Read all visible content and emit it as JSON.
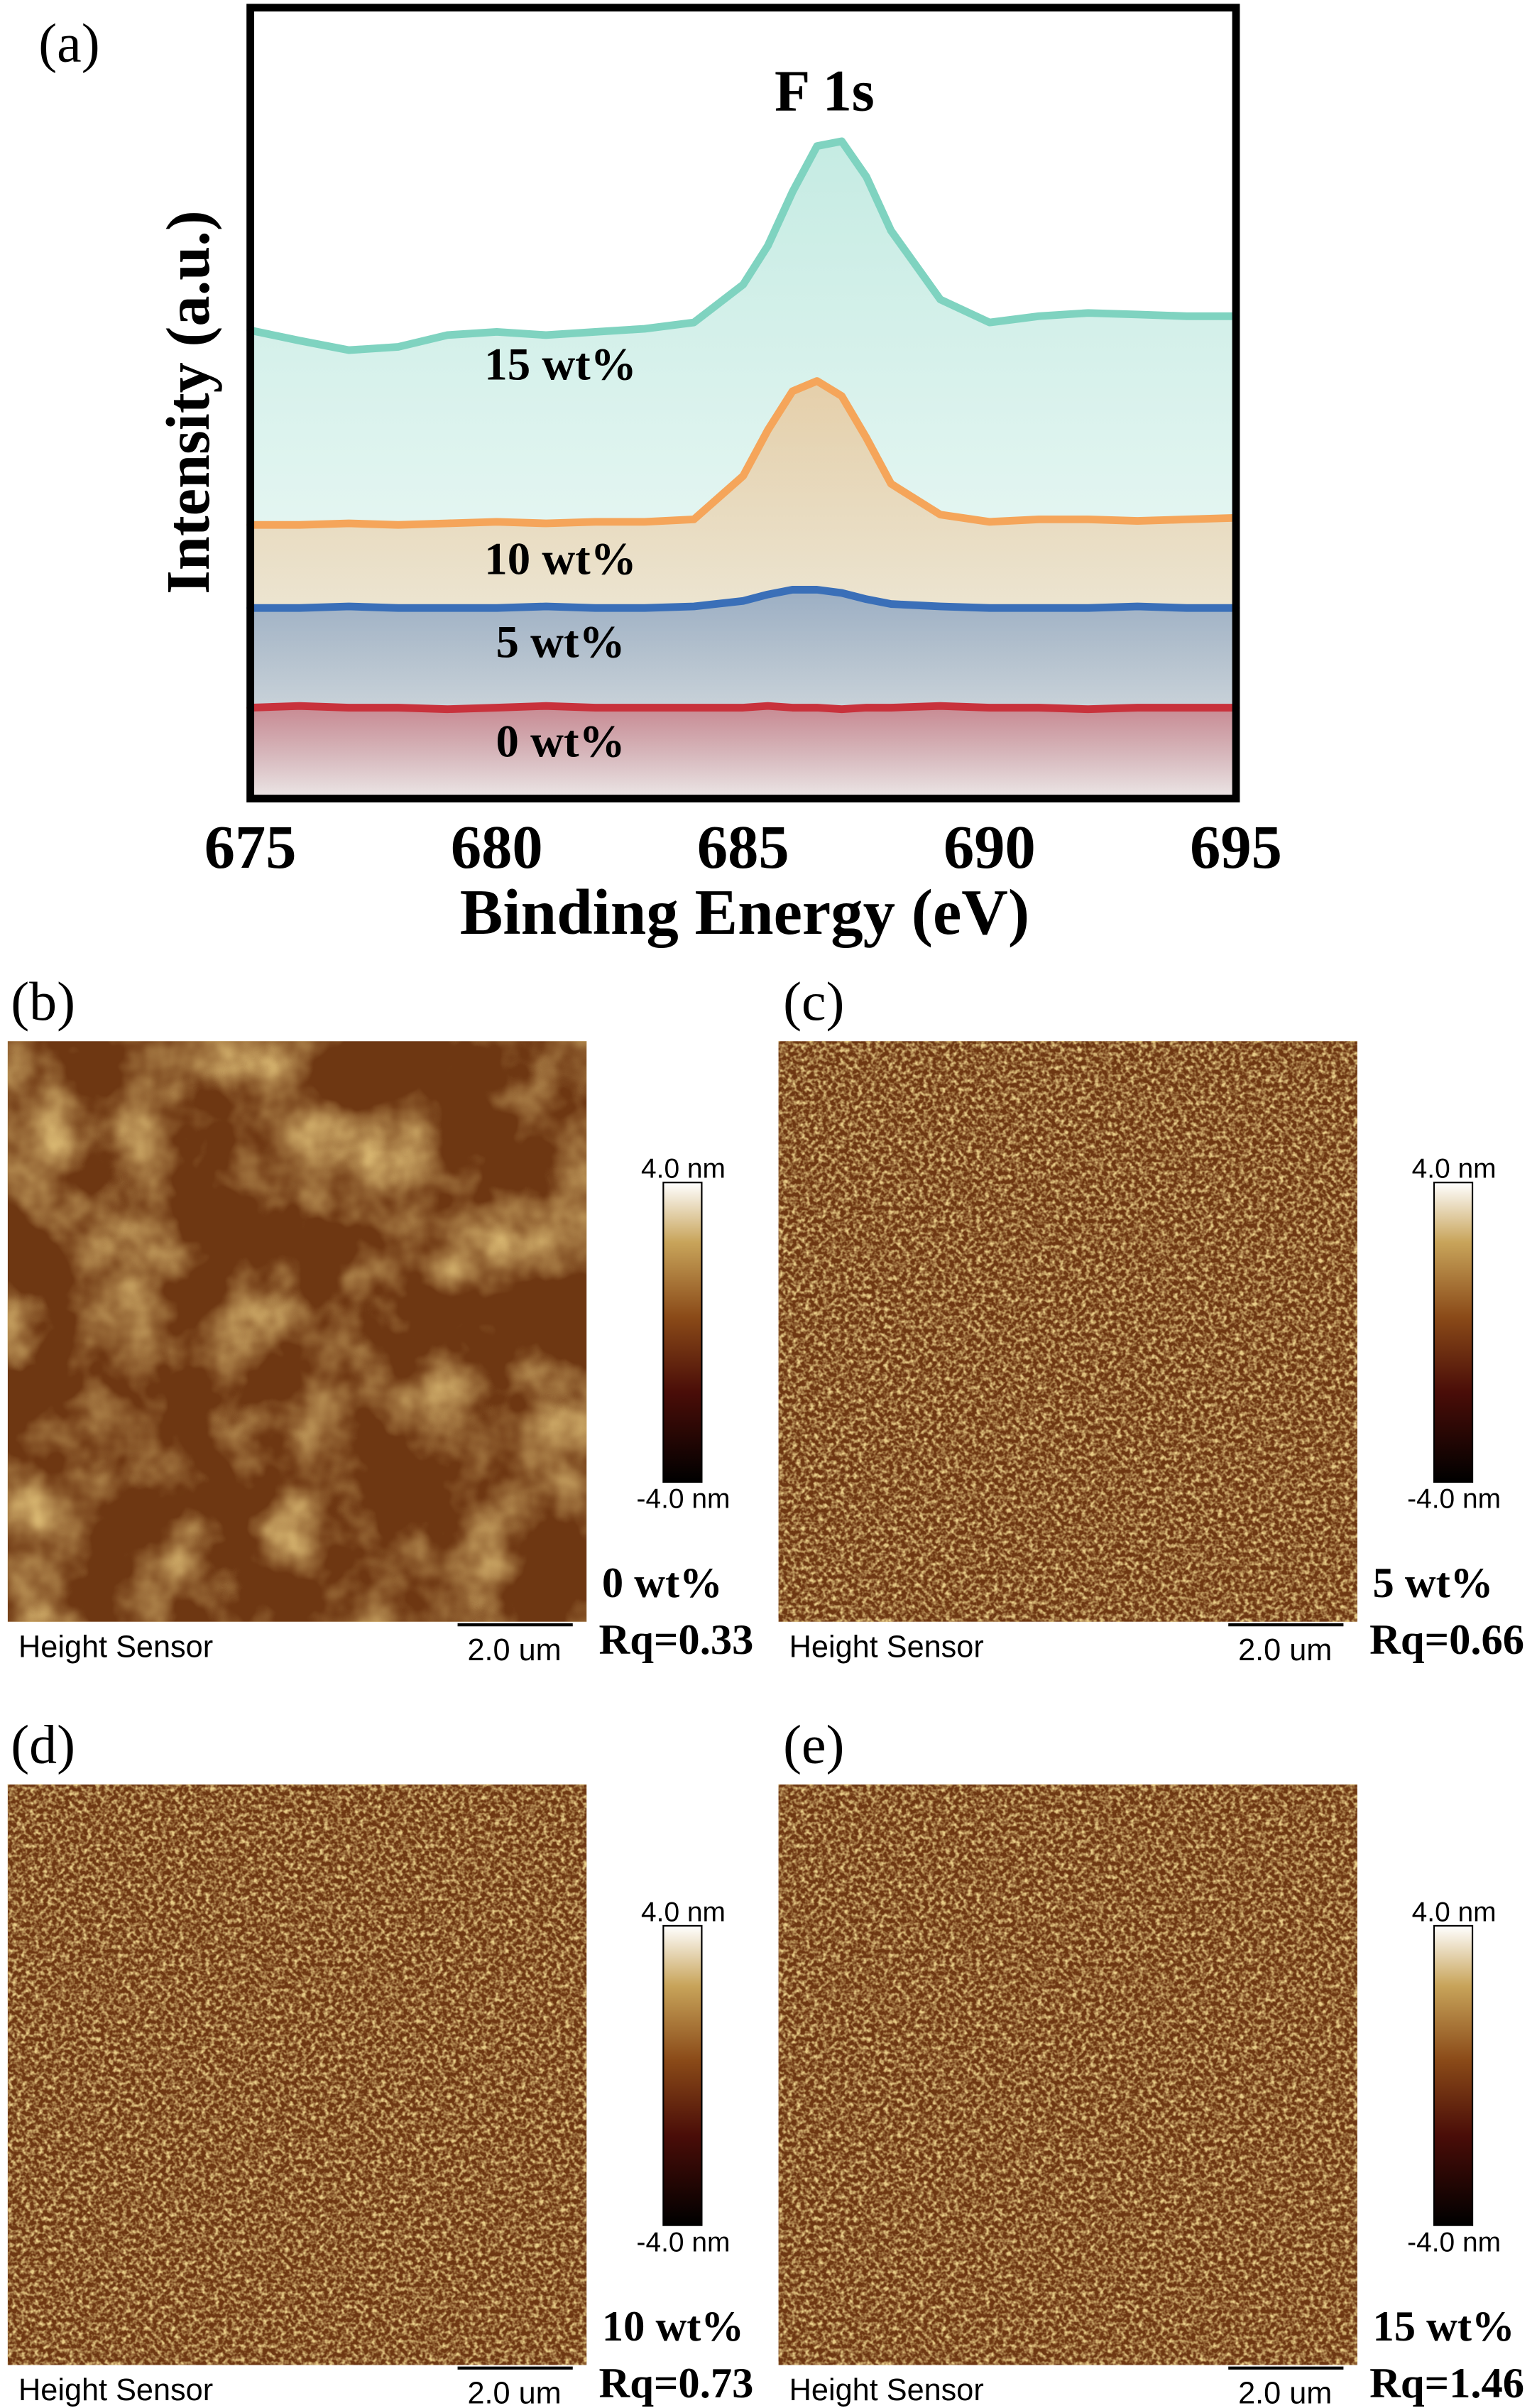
{
  "chart_data": {
    "type": "line",
    "panel_label": "(a)",
    "title": "F 1s",
    "x_label": "Binding Energy (eV)",
    "y_label": "Intensity (a.u.)",
    "x": [
      675,
      676,
      677,
      678,
      679,
      680,
      681,
      682,
      683,
      684,
      685,
      685.5,
      686,
      686.5,
      687,
      687.5,
      688,
      689,
      690,
      691,
      692,
      693,
      694,
      695
    ],
    "xlim": [
      675,
      695
    ],
    "xticks": [
      675,
      680,
      685,
      690,
      695
    ],
    "ylim": [
      0,
      10
    ],
    "grid": false,
    "series": [
      {
        "name": "15 wt%",
        "color": "#7fd3c0",
        "values": [
          5.92,
          5.79,
          5.67,
          5.71,
          5.86,
          5.9,
          5.86,
          5.9,
          5.94,
          6.02,
          6.5,
          6.99,
          7.67,
          8.25,
          8.31,
          7.86,
          7.18,
          6.31,
          6.02,
          6.1,
          6.14,
          6.12,
          6.1,
          6.1
        ]
      },
      {
        "name": "10 wt%",
        "color": "#f5a55a",
        "values": [
          3.46,
          3.46,
          3.48,
          3.46,
          3.48,
          3.5,
          3.48,
          3.5,
          3.5,
          3.53,
          4.08,
          4.66,
          5.15,
          5.28,
          5.09,
          4.56,
          3.98,
          3.59,
          3.5,
          3.53,
          3.53,
          3.51,
          3.53,
          3.55
        ]
      },
      {
        "name": "5 wt%",
        "color": "#3a6fb8",
        "values": [
          2.41,
          2.41,
          2.43,
          2.41,
          2.41,
          2.41,
          2.43,
          2.41,
          2.41,
          2.43,
          2.5,
          2.58,
          2.64,
          2.64,
          2.6,
          2.52,
          2.46,
          2.43,
          2.41,
          2.41,
          2.41,
          2.43,
          2.41,
          2.41
        ]
      },
      {
        "name": "0 wt%",
        "color": "#c8323c",
        "values": [
          1.15,
          1.17,
          1.15,
          1.15,
          1.13,
          1.15,
          1.17,
          1.15,
          1.15,
          1.15,
          1.15,
          1.17,
          1.15,
          1.15,
          1.13,
          1.15,
          1.15,
          1.17,
          1.15,
          1.15,
          1.13,
          1.15,
          1.15,
          1.15
        ]
      }
    ]
  },
  "afm_panels": [
    {
      "label": "(b)",
      "sample": "0 wt%",
      "rq": "Rq=0.33",
      "colorbar_max": "4.0 nm",
      "colorbar_min": "-4.0 nm",
      "sensor": "Height Sensor",
      "scale_bar": "2.0 um"
    },
    {
      "label": "(c)",
      "sample": "5 wt%",
      "rq": "Rq=0.66",
      "colorbar_max": "4.0 nm",
      "colorbar_min": "-4.0 nm",
      "sensor": "Height Sensor",
      "scale_bar": "2.0 um"
    },
    {
      "label": "(d)",
      "sample": "10 wt%",
      "rq": "Rq=0.73",
      "colorbar_max": "4.0 nm",
      "colorbar_min": "-4.0 nm",
      "sensor": "Height Sensor",
      "scale_bar": "2.0 um"
    },
    {
      "label": "(e)",
      "sample": "15 wt%",
      "rq": "Rq=1.46",
      "colorbar_max": "4.0 nm",
      "colorbar_min": "-4.0 nm",
      "sensor": "Height Sensor",
      "scale_bar": "2.0 um"
    }
  ]
}
